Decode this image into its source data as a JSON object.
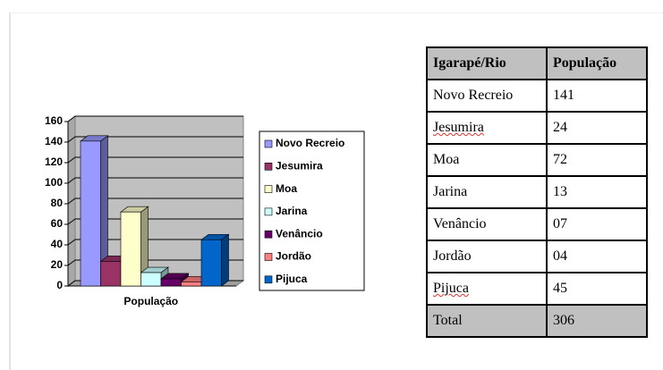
{
  "chart_data": {
    "type": "bar",
    "categories": [
      "População"
    ],
    "series": [
      {
        "name": "Novo Recreio",
        "color": "#9999ff",
        "values": [
          141
        ]
      },
      {
        "name": "Jesumira",
        "color": "#993366",
        "values": [
          24
        ]
      },
      {
        "name": "Moa",
        "color": "#ffffcc",
        "values": [
          72
        ]
      },
      {
        "name": "Jarina",
        "color": "#ccffff",
        "values": [
          13
        ]
      },
      {
        "name": "Venâncio",
        "color": "#660066",
        "values": [
          7
        ]
      },
      {
        "name": "Jordão",
        "color": "#ff8080",
        "values": [
          4
        ]
      },
      {
        "name": "Pijuca",
        "color": "#0066cc",
        "values": [
          45
        ]
      }
    ],
    "ylim": [
      0,
      160
    ],
    "yticks": [
      0,
      20,
      40,
      60,
      80,
      100,
      120,
      140,
      160
    ],
    "grid": true,
    "legend": "right"
  },
  "table": {
    "header": [
      "Igarapé/Rio",
      "População"
    ],
    "rows": [
      [
        "Novo Recreio",
        "141"
      ],
      [
        "Jesumira",
        "24"
      ],
      [
        "Moa",
        "72"
      ],
      [
        "Jarina",
        "13"
      ],
      [
        "Venâncio",
        "07"
      ],
      [
        "Jordão",
        "04"
      ],
      [
        "Pijuca",
        "45"
      ]
    ],
    "total": [
      "Total",
      "306"
    ]
  }
}
